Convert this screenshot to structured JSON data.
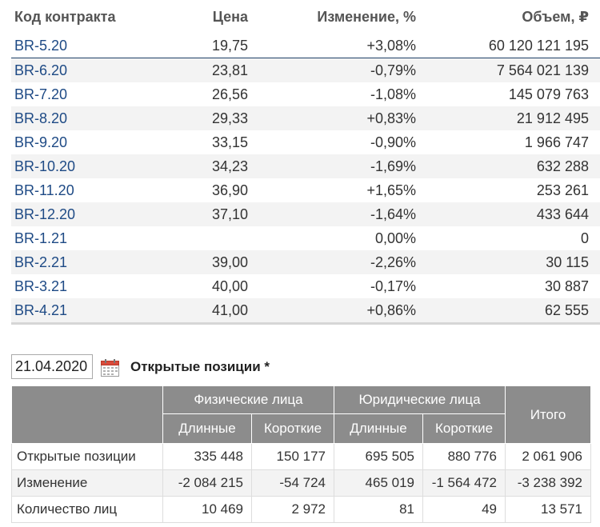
{
  "futures": {
    "headers": {
      "code": "Код контракта",
      "price": "Цена",
      "change": "Изменение, %",
      "volume": "Объем, ₽"
    },
    "rows": [
      {
        "code": "BR-5.20",
        "price": "19,75",
        "change": "+3,08%",
        "volume": "60 120 121 195",
        "trend": "pos"
      },
      {
        "code": "BR-6.20",
        "price": "23,81",
        "change": "-0,79%",
        "volume": "7 564 021 139",
        "trend": "neg"
      },
      {
        "code": "BR-7.20",
        "price": "26,56",
        "change": "-1,08%",
        "volume": "145 079 763",
        "trend": "neg"
      },
      {
        "code": "BR-8.20",
        "price": "29,33",
        "change": "+0,83%",
        "volume": "21 912 495",
        "trend": "pos"
      },
      {
        "code": "BR-9.20",
        "price": "33,15",
        "change": "-0,90%",
        "volume": "1 966 747",
        "trend": "neg"
      },
      {
        "code": "BR-10.20",
        "price": "34,23",
        "change": "-1,69%",
        "volume": "632 288",
        "trend": "neg"
      },
      {
        "code": "BR-11.20",
        "price": "36,90",
        "change": "+1,65%",
        "volume": "253 261",
        "trend": "pos"
      },
      {
        "code": "BR-12.20",
        "price": "37,10",
        "change": "-1,64%",
        "volume": "433 644",
        "trend": "neg"
      },
      {
        "code": "BR-1.21",
        "price": "",
        "change": "0,00%",
        "volume": "0",
        "trend": "zero"
      },
      {
        "code": "BR-2.21",
        "price": "39,00",
        "change": "-2,26%",
        "volume": "30 115",
        "trend": "neg"
      },
      {
        "code": "BR-3.21",
        "price": "40,00",
        "change": "-0,17%",
        "volume": "30 887",
        "trend": "neg"
      },
      {
        "code": "BR-4.21",
        "price": "41,00",
        "change": "+0,86%",
        "volume": "62 555",
        "trend": "pos"
      }
    ]
  },
  "open_interest": {
    "date": "21.04.2020",
    "calendar_icon": "calendar-icon",
    "title": "Открытые позиции *",
    "headers": {
      "individuals": "Физические лица",
      "legal": "Юридические лица",
      "total": "Итого",
      "long": "Длинные",
      "short": "Короткие"
    },
    "rows": [
      {
        "label": "Открытые позиции",
        "ind_long": "335 448",
        "ind_short": "150 177",
        "leg_long": "695 505",
        "leg_short": "880 776",
        "total": "2 061 906"
      },
      {
        "label": "Изменение",
        "ind_long": "-2 084 215",
        "ind_short": "-54 724",
        "leg_long": "465 019",
        "leg_short": "-1 564 472",
        "total": "-3 238 392"
      },
      {
        "label": "Количество лиц",
        "ind_long": "10 469",
        "ind_short": "2 972",
        "leg_long": "81",
        "leg_short": "49",
        "total": "13 571"
      }
    ]
  },
  "colors": {
    "positive": "#2a9a3a",
    "negative": "#e02020",
    "link": "#1e4a85",
    "header_bg": "#8c8c8c"
  }
}
